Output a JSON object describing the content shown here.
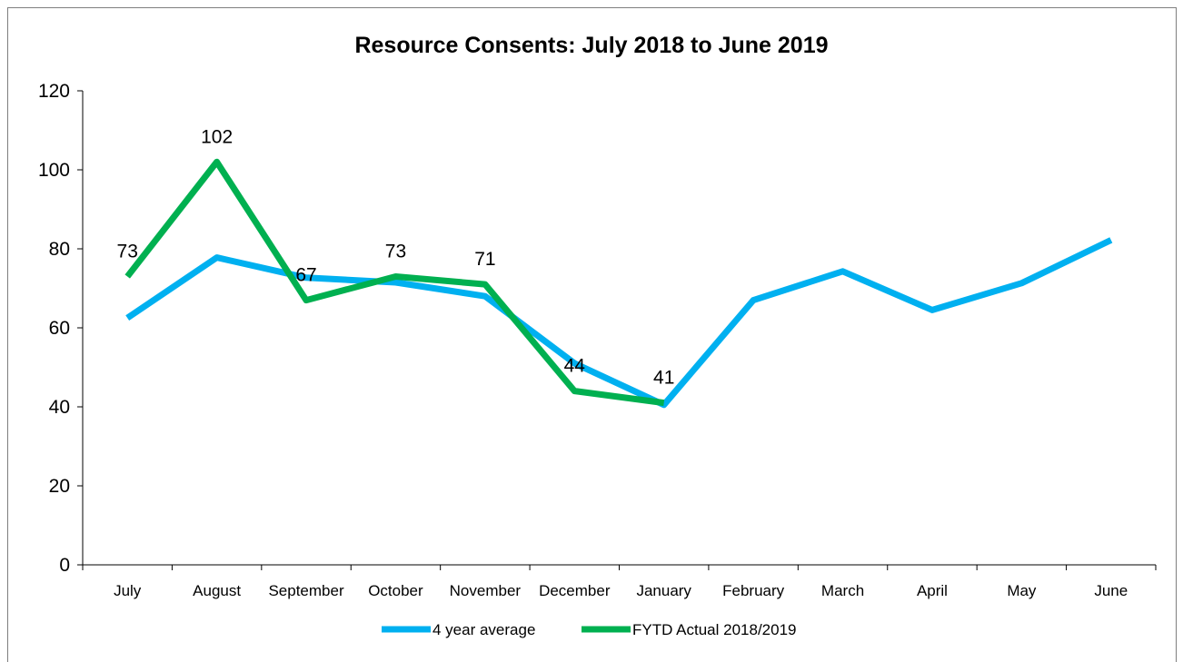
{
  "chart_data": {
    "type": "line",
    "title": "Resource Consents: July 2018 to June 2019",
    "xlabel": "",
    "ylabel": "",
    "ylim": [
      0,
      120
    ],
    "yticks": [
      0,
      20,
      40,
      60,
      80,
      100,
      120
    ],
    "grid": false,
    "legend_position": "bottom",
    "categories": [
      "July",
      "August",
      "September",
      "October",
      "November",
      "December",
      "January",
      "February",
      "March",
      "April",
      "May",
      "June"
    ],
    "series": [
      {
        "name": "4 year average",
        "color": "#00b0f0",
        "values": [
          62.5,
          77.8,
          72.7,
          71.5,
          68,
          51,
          40.5,
          67,
          74.3,
          64.5,
          71.3,
          82.2
        ],
        "show_labels": false
      },
      {
        "name": "FYTD Actual 2018/2019",
        "color": "#00b050",
        "values": [
          73,
          102,
          67,
          73,
          71,
          44,
          41,
          null,
          null,
          null,
          null,
          null
        ],
        "show_labels": true
      }
    ]
  }
}
